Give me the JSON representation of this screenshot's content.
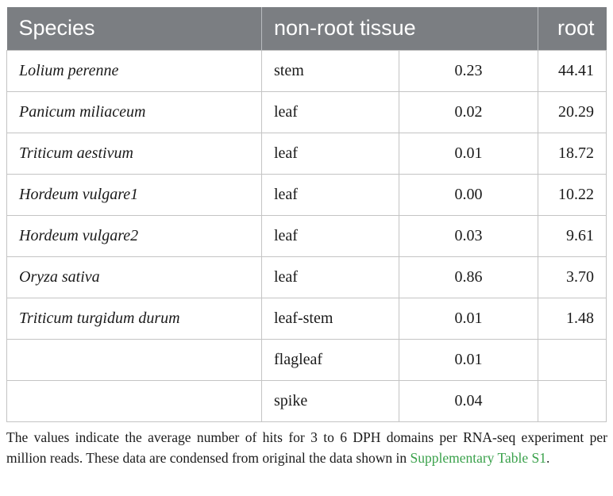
{
  "table": {
    "headers": {
      "species": "Species",
      "tissue": "non-root tissue",
      "root": "root"
    },
    "rows": [
      {
        "species": "Lolium perenne",
        "tissue": "stem",
        "value": "0.23",
        "root": "44.41"
      },
      {
        "species": "Panicum miliaceum",
        "tissue": "leaf",
        "value": "0.02",
        "root": "20.29"
      },
      {
        "species": "Triticum aestivum",
        "tissue": "leaf",
        "value": "0.01",
        "root": "18.72"
      },
      {
        "species": "Hordeum vulgare1",
        "tissue": "leaf",
        "value": "0.00",
        "root": "10.22"
      },
      {
        "species": "Hordeum vulgare2",
        "tissue": "leaf",
        "value": "0.03",
        "root": "9.61"
      },
      {
        "species": "Oryza sativa",
        "tissue": "leaf",
        "value": "0.86",
        "root": "3.70"
      },
      {
        "species": "Triticum turgidum durum",
        "tissue": "leaf-stem",
        "value": "0.01",
        "root": "1.48"
      },
      {
        "species": "",
        "tissue": "flagleaf",
        "value": "0.01",
        "root": ""
      },
      {
        "species": "",
        "tissue": "spike",
        "value": "0.04",
        "root": ""
      }
    ]
  },
  "footnote": {
    "text": "The values indicate the average number of hits for 3 to 6 DPH domains per RNA-seq experiment per million reads. These data are condensed from original the data shown in ",
    "link": "Supplementary Table S1",
    "end": "."
  },
  "colors": {
    "header_bg": "#7b7e82",
    "link": "#3aa14b",
    "border": "#c4c4c4"
  }
}
